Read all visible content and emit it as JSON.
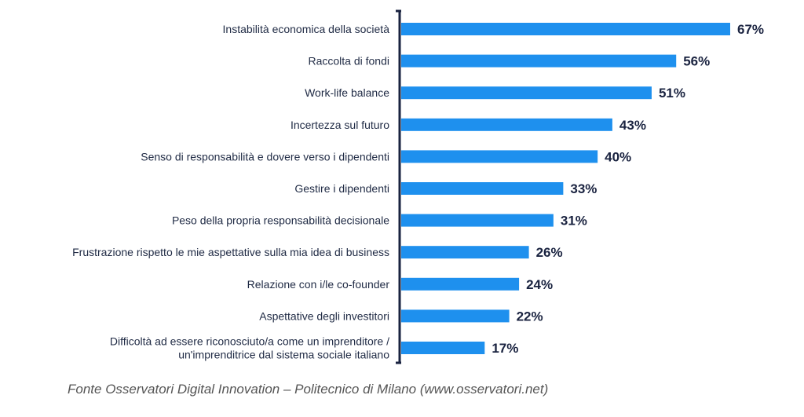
{
  "chart_data": {
    "type": "bar",
    "orientation": "horizontal",
    "categories": [
      [
        "Instabilità economica della società"
      ],
      [
        "Raccolta di fondi"
      ],
      [
        "Work-life balance"
      ],
      [
        "Incertezza sul futuro"
      ],
      [
        "Senso di responsabilità e dovere verso i dipendenti"
      ],
      [
        "Gestire i dipendenti"
      ],
      [
        "Peso della propria responsabilità decisionale"
      ],
      [
        "Frustrazione rispetto le mie aspettative sulla mia idea di business"
      ],
      [
        "Relazione con i/le co-founder"
      ],
      [
        "Aspettative degli investitori"
      ],
      [
        "Difficoltà ad essere riconosciuto/a come un imprenditore /",
        "un'imprenditrice dal sistema sociale italiano"
      ]
    ],
    "values": [
      67,
      56,
      51,
      43,
      40,
      33,
      31,
      26,
      24,
      22,
      17
    ],
    "value_labels": [
      "67%",
      "56%",
      "51%",
      "43%",
      "40%",
      "33%",
      "31%",
      "26%",
      "24%",
      "22%",
      "17%"
    ],
    "bar_color": "#1e90ee",
    "axis_color": "#1a2340",
    "grid": false,
    "legend": "none"
  },
  "source_note": "Fonte Osservatori Digital Innovation – Politecnico di Milano (www.osservatori.net)"
}
